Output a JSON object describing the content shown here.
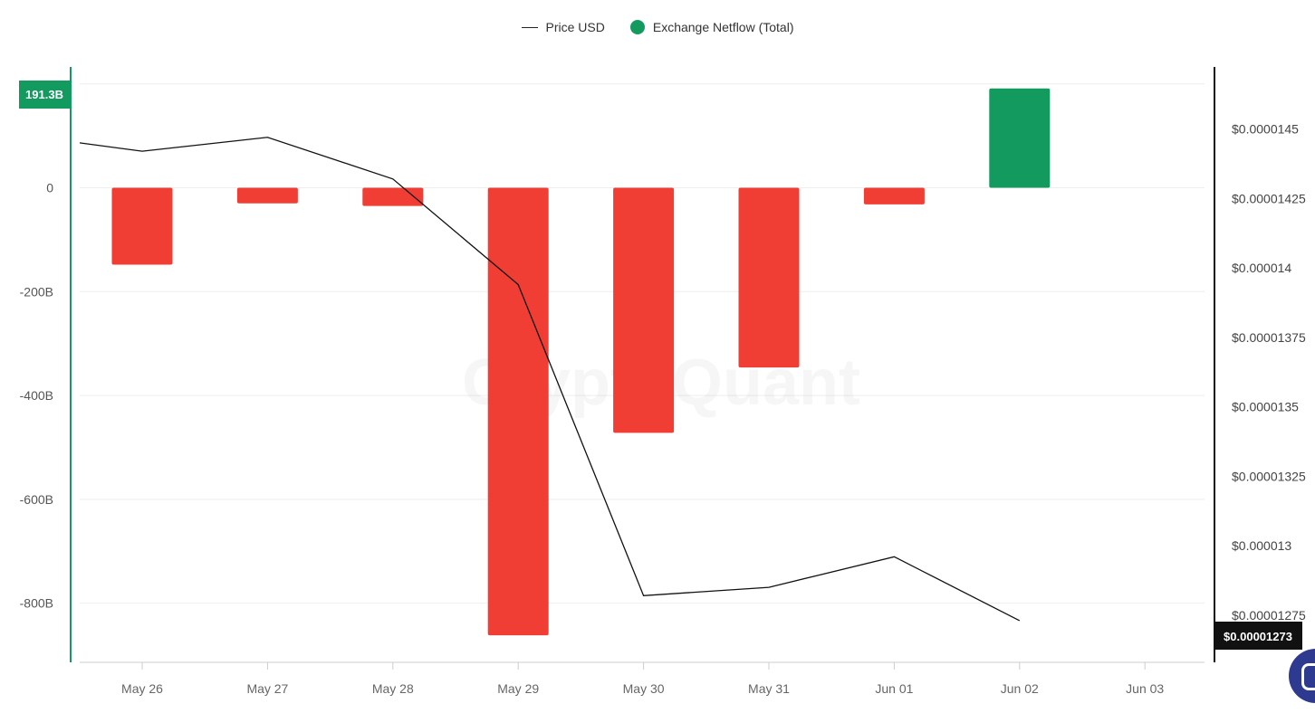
{
  "legend": {
    "price_label": "Price USD",
    "netflow_label": "Exchange Netflow (Total)"
  },
  "colors": {
    "positive": "#139a5e",
    "negative": "#f03e34",
    "price_line": "#111111",
    "left_axis": "#139a5e",
    "right_axis": "#111111",
    "grid": "#eeeeee"
  },
  "watermark": "CryptoQuant",
  "badges": {
    "left_value": "191.3B",
    "right_value": "$0.00001273"
  },
  "chart_data": {
    "type": "bar",
    "x_categories": [
      "May 26",
      "May 27",
      "May 28",
      "May 29",
      "May 30",
      "May 31",
      "Jun 01",
      "Jun 02",
      "Jun 03"
    ],
    "left_axis": {
      "ticks": [
        "0",
        "-200B",
        "-400B",
        "-600B",
        "-800B"
      ],
      "tick_values": [
        0,
        -200,
        -400,
        -600,
        -800
      ],
      "range": [
        -914,
        231
      ],
      "unit": "B"
    },
    "right_axis": {
      "ticks": [
        "$0.0000145",
        "$0.00001425",
        "$0.000014",
        "$0.00001375",
        "$0.0000135",
        "$0.00001325",
        "$0.000013",
        "$0.00001275"
      ],
      "tick_values": [
        1.45e-05,
        1.425e-05,
        1.4e-05,
        1.375e-05,
        1.35e-05,
        1.325e-05,
        1.3e-05,
        1.275e-05
      ],
      "range": [
        1.258e-05,
        1.472e-05
      ]
    },
    "series": [
      {
        "name": "Exchange Netflow (Total)",
        "type": "bar",
        "axis": "left",
        "points": [
          {
            "x": "May 26",
            "y": -148
          },
          {
            "x": "May 27",
            "y": -30
          },
          {
            "x": "May 28",
            "y": -35
          },
          {
            "x": "May 29",
            "y": -862
          },
          {
            "x": "May 30",
            "y": -472
          },
          {
            "x": "May 31",
            "y": -346
          },
          {
            "x": "Jun 01",
            "y": -32
          },
          {
            "x": "Jun 02",
            "y": 191.3
          }
        ]
      },
      {
        "name": "Price USD",
        "type": "line",
        "axis": "right",
        "points": [
          {
            "x": "May 26",
            "y": 1.442e-05
          },
          {
            "x": "May 27",
            "y": 1.447e-05
          },
          {
            "x": "May 28",
            "y": 1.432e-05
          },
          {
            "x": "May 29",
            "y": 1.394e-05
          },
          {
            "x": "May 30",
            "y": 1.282e-05
          },
          {
            "x": "May 31",
            "y": 1.285e-05
          },
          {
            "x": "Jun 01",
            "y": 1.296e-05
          },
          {
            "x": "Jun 02",
            "y": 1.273e-05
          }
        ]
      }
    ],
    "start_point": {
      "x": "May 26",
      "y": 1.445e-05
    }
  }
}
